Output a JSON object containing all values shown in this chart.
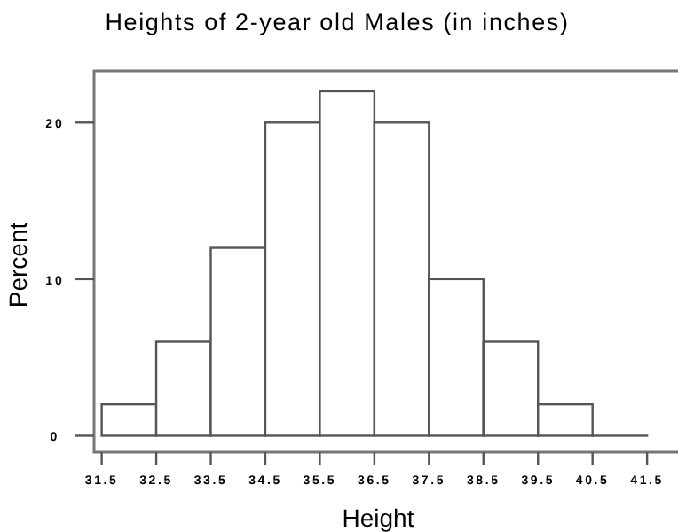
{
  "chart_data": {
    "type": "histogram",
    "title": "Heights of 2-year old Males (in inches)",
    "xlabel": "Height",
    "ylabel": "Percent",
    "bins": [
      31.5,
      32.5,
      33.5,
      34.5,
      35.5,
      36.5,
      37.5,
      38.5,
      39.5,
      40.5,
      41.5
    ],
    "values": [
      2,
      6,
      12,
      20,
      22,
      20,
      10,
      6,
      2,
      0
    ],
    "color": "#ffffff",
    "xlim": [
      31.36,
      42.1
    ],
    "ylim": [
      -1.05,
      23.3
    ],
    "xticks": [
      31.5,
      32.5,
      33.5,
      34.5,
      35.5,
      36.5,
      37.5,
      38.5,
      39.5,
      40.5,
      41.5
    ],
    "yticks": [
      0,
      10,
      20
    ],
    "grid": false
  }
}
